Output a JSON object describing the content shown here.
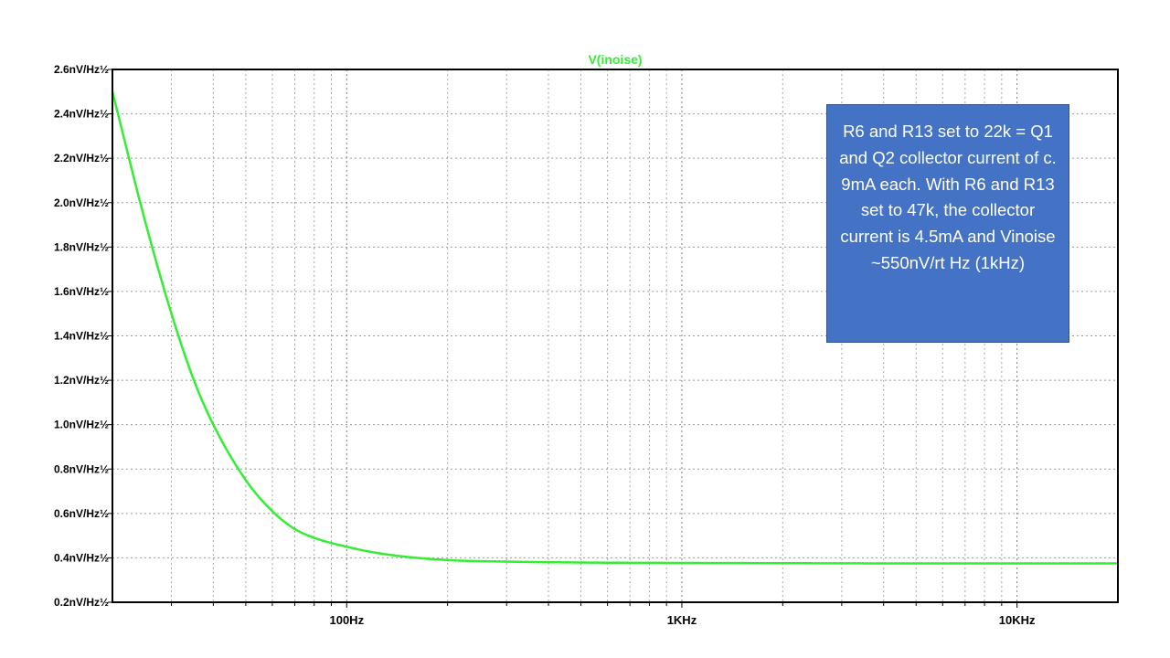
{
  "chart_data": {
    "type": "line",
    "x_scale": "log",
    "y_scale": "linear",
    "xlim": [
      20,
      20000
    ],
    "ylim": [
      0.2,
      2.6
    ],
    "grid": true,
    "series": [
      {
        "name": "V(inoise)",
        "color": "#33ee33",
        "x": [
          20,
          25,
          30,
          35,
          40,
          50,
          60,
          70,
          80,
          100,
          120,
          150,
          200,
          300,
          500,
          1000,
          2000,
          5000,
          10000,
          20000
        ],
        "y": [
          2.5,
          1.92,
          1.5,
          1.2,
          1.0,
          0.75,
          0.61,
          0.53,
          0.49,
          0.45,
          0.425,
          0.405,
          0.39,
          0.383,
          0.379,
          0.377,
          0.376,
          0.375,
          0.375,
          0.375
        ]
      }
    ],
    "y_ticks": [
      {
        "value": 2.6,
        "label": "2.6nV/Hz½"
      },
      {
        "value": 2.4,
        "label": "2.4nV/Hz½"
      },
      {
        "value": 2.2,
        "label": "2.2nV/Hz½"
      },
      {
        "value": 2.0,
        "label": "2.0nV/Hz½"
      },
      {
        "value": 1.8,
        "label": "1.8nV/Hz½"
      },
      {
        "value": 1.6,
        "label": "1.6nV/Hz½"
      },
      {
        "value": 1.4,
        "label": "1.4nV/Hz½"
      },
      {
        "value": 1.2,
        "label": "1.2nV/Hz½"
      },
      {
        "value": 1.0,
        "label": "1.0nV/Hz½"
      },
      {
        "value": 0.8,
        "label": "0.8nV/Hz½"
      },
      {
        "value": 0.6,
        "label": "0.6nV/Hz½"
      },
      {
        "value": 0.4,
        "label": "0.4nV/Hz½"
      },
      {
        "value": 0.2,
        "label": "0.2nV/Hz½"
      }
    ],
    "x_ticks": [
      {
        "value": 100,
        "label": "100Hz"
      },
      {
        "value": 1000,
        "label": "1KHz"
      },
      {
        "value": 10000,
        "label": "10KHz"
      }
    ]
  },
  "annotation": {
    "text": "R6 and R13 set to 22k = Q1 and Q2 collector current of c. 9mA each. With R6 and R13 set to 47k, the collector current is 4.5mA and Vinoise ~550nV/rt Hz (1kHz)",
    "background": "#4472c4",
    "text_color": "#ffffff"
  }
}
